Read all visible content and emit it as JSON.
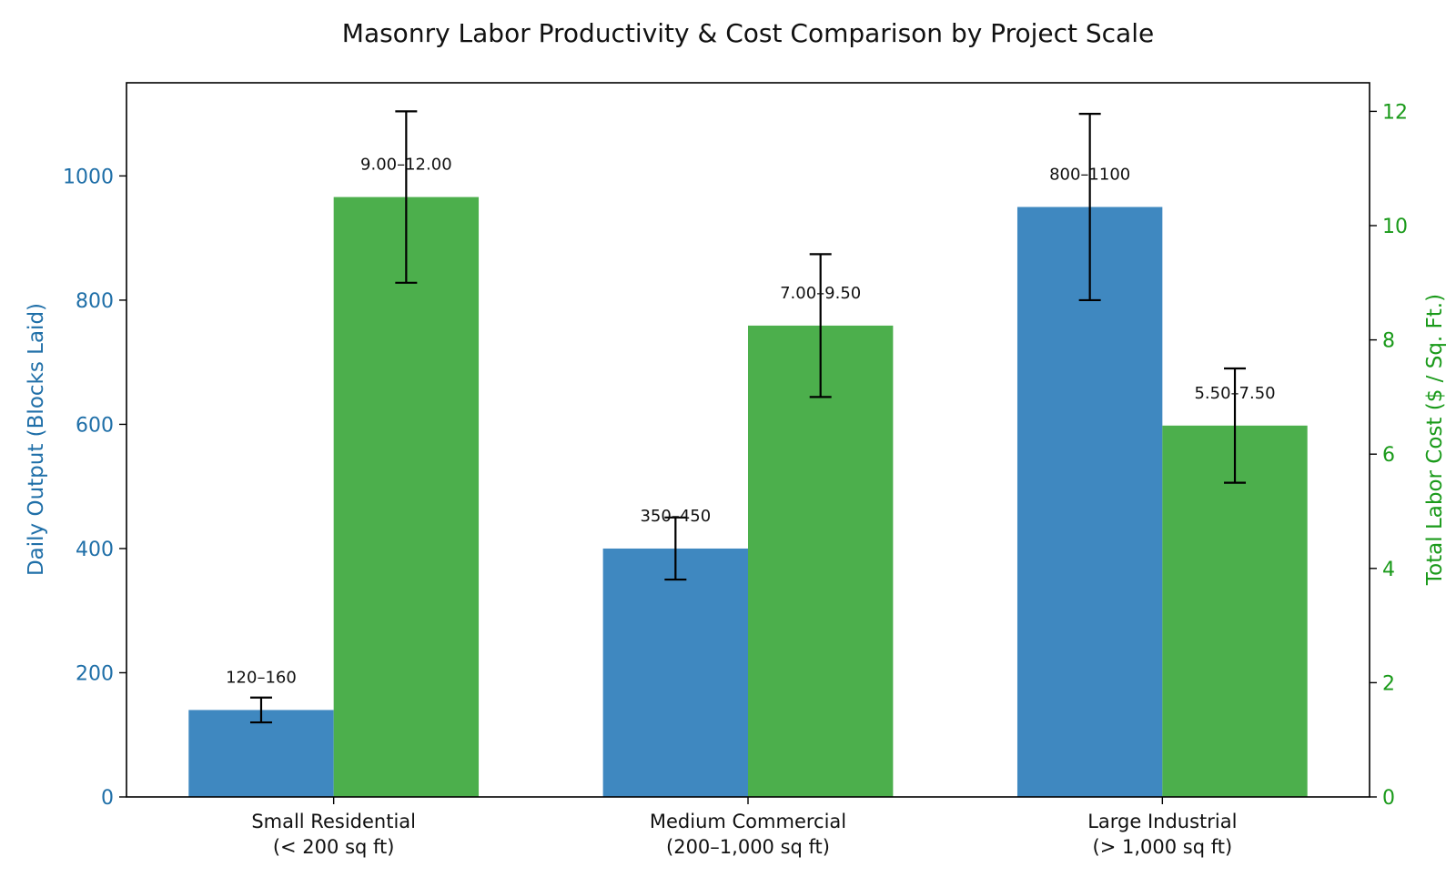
{
  "chart_data": {
    "type": "bar",
    "title": "Masonry Labor Productivity & Cost Comparison by Project Scale",
    "categories": [
      [
        "Small Residential",
        "(< 200 sq ft)"
      ],
      [
        "Medium Commercial",
        "(200–1,000 sq ft)"
      ],
      [
        "Large Industrial",
        "(> 1,000 sq ft)"
      ]
    ],
    "y_left": {
      "label": "Daily Output (Blocks Laid)",
      "lim": [
        0,
        1150
      ],
      "ticks": [
        0,
        200,
        400,
        600,
        800,
        1000
      ],
      "color": "#1f6fa8"
    },
    "y_right": {
      "label": "Total Labor Cost ($ / Sq. Ft.)",
      "lim": [
        0,
        12.5
      ],
      "ticks": [
        0,
        2,
        4,
        6,
        8,
        10,
        12
      ],
      "color": "#1a9a1a"
    },
    "series": [
      {
        "axis": "left",
        "color": "#3f88c0",
        "values": [
          140,
          400,
          950
        ],
        "err_low": [
          120,
          350,
          800
        ],
        "err_high": [
          160,
          450,
          1100
        ],
        "labels": [
          "120–160",
          "350–450",
          "800–1100"
        ]
      },
      {
        "axis": "right",
        "color": "#4caf4c",
        "values": [
          10.5,
          8.25,
          6.5
        ],
        "err_low": [
          9.0,
          7.0,
          5.5
        ],
        "err_high": [
          12.0,
          9.5,
          7.5
        ],
        "labels": [
          "9.00–12.00",
          "7.00–9.50",
          "5.50–7.50"
        ]
      }
    ],
    "grid": false,
    "error_bar_color": "#000000"
  }
}
